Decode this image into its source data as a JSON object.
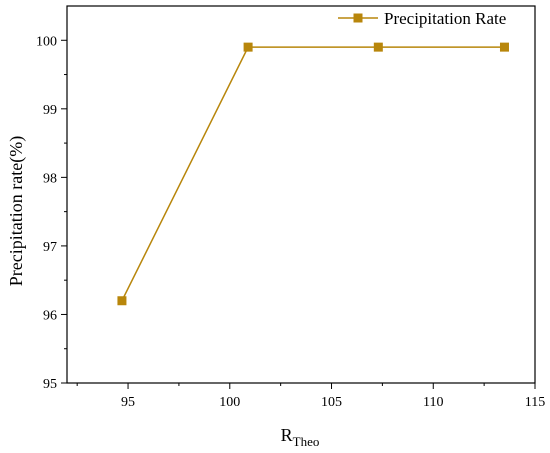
{
  "chart_data": {
    "type": "line",
    "xlabel_main": "R",
    "xlabel_sub": "Theo",
    "ylabel": "Precipitation rate(%)",
    "xlim": [
      92,
      115
    ],
    "ylim": [
      95,
      100.5
    ],
    "x_ticks": [
      95,
      100,
      105,
      110,
      115
    ],
    "y_ticks": [
      95,
      96,
      97,
      98,
      99,
      100
    ],
    "grid": false,
    "legend_position": "top-right",
    "series": [
      {
        "name": "Precipitation Rate",
        "color": "#B8860B",
        "marker": "square",
        "x": [
          94.7,
          100.9,
          107.3,
          113.5
        ],
        "y": [
          96.2,
          99.9,
          99.9,
          99.9
        ]
      }
    ]
  }
}
